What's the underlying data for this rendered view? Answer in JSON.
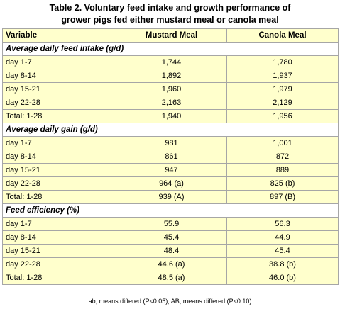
{
  "title_line1": "Table 2. Voluntary feed intake and growth performance of",
  "title_line2": "grower pigs fed either mustard meal or canola meal",
  "headers": {
    "variable": "Variable",
    "mustard": "Mustard Meal",
    "canola": "Canola Meal"
  },
  "sections": [
    {
      "heading": "Average daily feed intake (g/d)",
      "rows": [
        {
          "label": "day 1-7",
          "mustard": "1,744",
          "canola": "1,780"
        },
        {
          "label": "day 8-14",
          "mustard": "1,892",
          "canola": "1,937"
        },
        {
          "label": "day 15-21",
          "mustard": "1,960",
          "canola": "1,979"
        },
        {
          "label": "day 22-28",
          "mustard": "2,163",
          "canola": "2,129"
        },
        {
          "label": "Total: 1-28",
          "mustard": "1,940",
          "canola": "1,956"
        }
      ]
    },
    {
      "heading": "Average daily gain (g/d)",
      "rows": [
        {
          "label": "day 1-7",
          "mustard": "981",
          "canola": "1,001"
        },
        {
          "label": "day 8-14",
          "mustard": "861",
          "canola": "872"
        },
        {
          "label": "day 15-21",
          "mustard": "947",
          "canola": "889"
        },
        {
          "label": "day 22-28",
          "mustard": "964 (a)",
          "canola": "825 (b)"
        },
        {
          "label": "Total: 1-28",
          "mustard": "939 (A)",
          "canola": "897 (B)"
        }
      ]
    },
    {
      "heading": "Feed efficiency (%)",
      "rows": [
        {
          "label": "day 1-7",
          "mustard": "55.9",
          "canola": "56.3"
        },
        {
          "label": "day 8-14",
          "mustard": "45.4",
          "canola": "44.9"
        },
        {
          "label": "day 15-21",
          "mustard": "48.4",
          "canola": "45.4"
        },
        {
          "label": "day 22-28",
          "mustard": "44.6 (a)",
          "canola": "38.8 (b)"
        },
        {
          "label": "Total: 1-28",
          "mustard": "48.5 (a)",
          "canola": "46.0 (b)"
        }
      ]
    }
  ],
  "footnote": "ab, means differed (P<0.05); AB, means differed (P<0.10)",
  "colors": {
    "cell_background": "#ffffcc",
    "section_background": "#ffffff",
    "border": "#a6a6a6"
  }
}
